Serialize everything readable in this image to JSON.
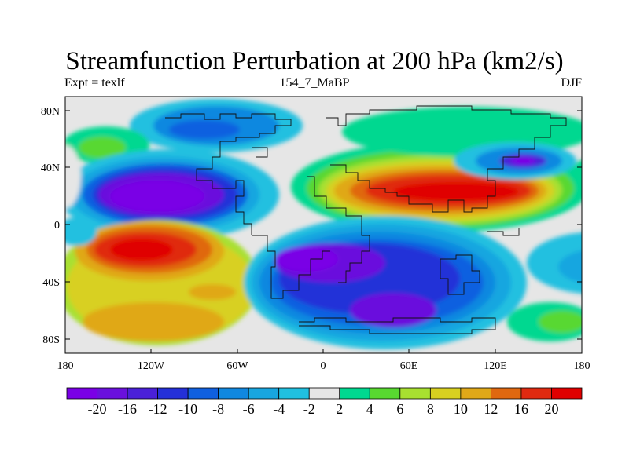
{
  "title": "Streamfunction Perturbation at 200 hPa (km2/s)",
  "left_string": "Expt = texlf",
  "center_string": "154_7_MaBP",
  "right_string": "DJF",
  "lat_ticks": [
    "80N",
    "40N",
    "0",
    "40S",
    "80S"
  ],
  "lon_ticks": [
    "180",
    "120W",
    "60W",
    "0",
    "60E",
    "120E",
    "180"
  ],
  "colorbar": {
    "labels": [
      "-20",
      "-16",
      "-12",
      "-10",
      "-8",
      "-6",
      "-4",
      "-2",
      "2",
      "4",
      "6",
      "8",
      "10",
      "12",
      "16",
      "20"
    ],
    "colors": [
      "#7a00e6",
      "#6a10dd",
      "#4a20d8",
      "#2430d8",
      "#1060e0",
      "#1088e0",
      "#18a6e0",
      "#20c0e0",
      "#e6e6e6",
      "#00d890",
      "#58d830",
      "#a8e030",
      "#d8d020",
      "#e0a818",
      "#e06810",
      "#e02a10",
      "#e00000"
    ]
  },
  "chart_data": {
    "type": "heatmap",
    "title": "Streamfunction Perturbation at 200 hPa (km2/s)",
    "subtitle_left": "Expt = texlf",
    "subtitle_center": "154_7_MaBP",
    "subtitle_right": "DJF",
    "x_range": [
      -180,
      180
    ],
    "y_range": [
      -90,
      90
    ],
    "contour_levels": [
      -20,
      -16,
      -12,
      -10,
      -8,
      -6,
      -4,
      -2,
      2,
      4,
      6,
      8,
      10,
      12,
      16,
      20
    ],
    "features": [
      {
        "lon": -110,
        "lat": 25,
        "value": -20
      },
      {
        "lon": -80,
        "lat": 70,
        "value": -8
      },
      {
        "lon": 140,
        "lat": 45,
        "value": -16
      },
      {
        "lon": 60,
        "lat": -25,
        "value": -16
      },
      {
        "lon": 90,
        "lat": 25,
        "value": 20
      },
      {
        "lon": -120,
        "lat": -15,
        "value": 20
      },
      {
        "lon": -120,
        "lat": -60,
        "value": 10
      },
      {
        "lon": 170,
        "lat": -65,
        "value": 6
      },
      {
        "lon": -165,
        "lat": 50,
        "value": 6
      },
      {
        "lon": 90,
        "lat": 70,
        "value": 4
      }
    ]
  }
}
